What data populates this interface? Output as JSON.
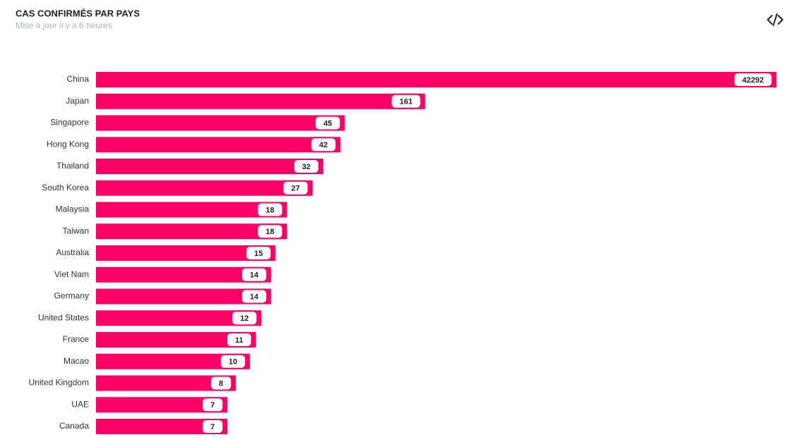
{
  "chart_data": {
    "type": "bar",
    "orientation": "horizontal",
    "title": "CAS CONFIRMÉS PAR PAYS",
    "subtitle": "Mise à jour il y a 6 heures",
    "categories": [
      "China",
      "Japan",
      "Singapore",
      "Hong Kong",
      "Thailand",
      "South Korea",
      "Malaysia",
      "Taiwan",
      "Australia",
      "Viet Nam",
      "Germany",
      "United States",
      "France",
      "Macao",
      "United Kingdom",
      "UAE",
      "Canada"
    ],
    "values": [
      42292,
      161,
      45,
      42,
      32,
      27,
      18,
      18,
      15,
      14,
      14,
      12,
      11,
      10,
      8,
      7,
      7
    ],
    "color": "#ff0066",
    "log_scale": true,
    "xlim": [
      0.87,
      45000
    ]
  }
}
